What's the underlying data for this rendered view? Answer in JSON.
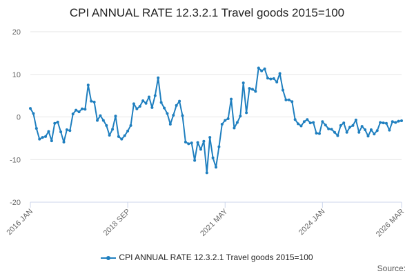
{
  "chart_data": {
    "type": "line",
    "title": "CPI ANNUAL RATE 12.3.2.1 Travel goods 2015=100",
    "xlabel": "",
    "ylabel": "",
    "ylim": [
      -20,
      20
    ],
    "yticks": [
      -20,
      -10,
      0,
      10,
      20
    ],
    "x_tick_labels": [
      "2016 JAN",
      "2018 SEP",
      "2021 MAY",
      "2024 JAN",
      "2026 MAR"
    ],
    "x_tick_index": [
      0,
      32,
      64,
      96,
      122
    ],
    "source_label": "Source:",
    "series": [
      {
        "name": "CPI ANNUAL RATE 12.3.2.1 Travel goods 2015=100",
        "color": "#1f7fbf",
        "start": "2016 JAN",
        "values": [
          2.0,
          0.8,
          -2.7,
          -5.2,
          -4.8,
          -4.6,
          -3.4,
          -5.6,
          -1.5,
          -1.2,
          -3.5,
          -5.9,
          -3.0,
          -3.2,
          0.7,
          1.6,
          1.2,
          1.9,
          1.8,
          7.5,
          3.7,
          3.5,
          -0.8,
          0.3,
          -0.8,
          -2.0,
          -4.3,
          -2.9,
          0.2,
          -4.6,
          -5.2,
          -4.4,
          -3.3,
          -2.0,
          3.1,
          1.9,
          2.5,
          3.8,
          3.2,
          4.7,
          2.2,
          5.0,
          9.2,
          3.4,
          2.1,
          0.8,
          -1.7,
          0.4,
          2.7,
          3.7,
          0.3,
          -5.9,
          -6.3,
          -6.1,
          -10.2,
          -6.0,
          -7.6,
          -5.7,
          -13.1,
          -4.8,
          -9.6,
          -11.8,
          -7.0,
          -1.7,
          -0.8,
          -0.4,
          4.2,
          -2.6,
          -1.3,
          0.2,
          8.0,
          1.0,
          6.7,
          6.5,
          6.0,
          11.5,
          10.8,
          11.3,
          9.1,
          8.9,
          9.0,
          8.2,
          10.2,
          6.3,
          4.0,
          4.0,
          3.6,
          -0.6,
          -1.6,
          -2.1,
          -1.1,
          -0.6,
          -1.4,
          -1.3,
          -3.8,
          -3.9,
          -1.1,
          -1.9,
          -2.8,
          -2.9,
          -3.6,
          -4.4,
          -2.0,
          -1.4,
          -3.6,
          -2.4,
          -2.0,
          -0.7,
          -3.6,
          -2.2,
          -3.0,
          -4.5,
          -3.0,
          -4.0,
          -3.2,
          -1.3,
          -1.4,
          -1.5,
          -3.1,
          -1.1,
          -1.3,
          -1.0,
          -0.9
        ]
      }
    ]
  }
}
